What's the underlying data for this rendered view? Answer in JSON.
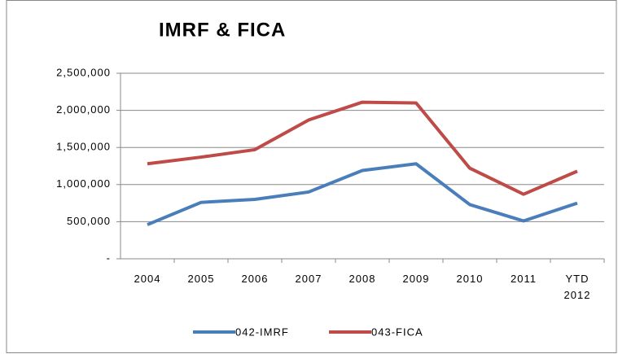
{
  "chart_data": {
    "type": "line",
    "title": "IMRF & FICA",
    "categories": [
      "2004",
      "2005",
      "2006",
      "2007",
      "2008",
      "2009",
      "2010",
      "2011",
      "YTD 2012"
    ],
    "series": [
      {
        "name": "042-IMRF",
        "color": "#4a7ebb",
        "values": [
          460000,
          760000,
          800000,
          900000,
          1190000,
          1280000,
          730000,
          510000,
          750000
        ]
      },
      {
        "name": "043-FICA",
        "color": "#be4b48",
        "values": [
          1280000,
          1370000,
          1470000,
          1870000,
          2110000,
          2100000,
          1220000,
          870000,
          1180000
        ]
      }
    ],
    "ylim": [
      0,
      2500000
    ],
    "yticks": [
      {
        "value": 0,
        "label": "-"
      },
      {
        "value": 500000,
        "label": "500,000"
      },
      {
        "value": 1000000,
        "label": "1,000,000"
      },
      {
        "value": 1500000,
        "label": "1,500,000"
      },
      {
        "value": 2000000,
        "label": "2,000,000"
      },
      {
        "value": 2500000,
        "label": "2,500,000"
      }
    ],
    "grid": true,
    "legend": "bottom"
  }
}
